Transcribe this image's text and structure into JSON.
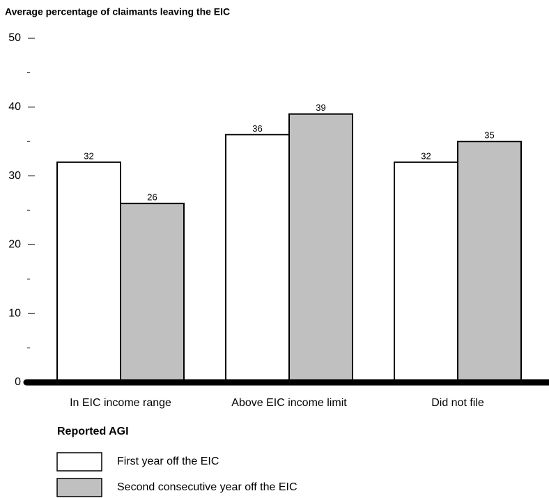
{
  "chart_data": {
    "type": "bar",
    "title": "Average percentage of claimants leaving the EIC",
    "x_label": "Reported AGI",
    "categories": [
      "In EIC income range",
      "Above EIC income limit",
      "Did not file"
    ],
    "series": [
      {
        "name": "First year off the EIC",
        "color": "#ffffff",
        "values": [
          32,
          36,
          32
        ]
      },
      {
        "name": "Second consecutive year off the EIC",
        "color": "#c0c0c0",
        "values": [
          26,
          39,
          35
        ]
      }
    ],
    "ylim": [
      0,
      50
    ],
    "yticks": [
      0,
      10,
      20,
      30,
      40,
      50
    ],
    "minor_yticks": [
      5,
      15,
      25,
      35,
      45
    ]
  }
}
